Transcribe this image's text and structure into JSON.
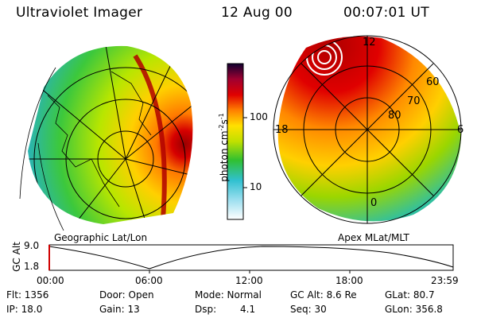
{
  "header": {
    "instrument": "Ultraviolet Imager",
    "date": "12 Aug 00",
    "time": "00:07:01 UT"
  },
  "colors": {
    "auroral_high": "#c00000",
    "auroral_mid": "#ff8c00",
    "auroral_low": "#2ecc2e",
    "background": "#ffffff",
    "grid": "#000000"
  },
  "left_panel": {
    "label": "Geographic Lat/Lon"
  },
  "right_panel": {
    "label": "Apex MLat/MLT",
    "mlt_labels": [
      "12",
      "18",
      "6",
      "0"
    ],
    "lat_labels": [
      "60",
      "70",
      "80"
    ]
  },
  "colorbar": {
    "unit": "photon cm",
    "ticks": [
      "100",
      "10"
    ]
  },
  "timeline": {
    "ylabel": "GC Alt",
    "ymax": "9.0",
    "ymin": "1.8",
    "ticks": [
      "00:00",
      "06:00",
      "12:00",
      "18:00",
      "23:59"
    ]
  },
  "footer": {
    "flt": "Flt: 1356",
    "ip": "IP: 18.0",
    "door": "Door: Open",
    "gain": "Gain: 13",
    "mode": "Mode: Normal",
    "dsp_label": "Dsp:",
    "dsp_value": "4.1",
    "gcalt": "GC Alt: 8.6 Re",
    "seq": "Seq: 30",
    "glat": "GLat:  80.7",
    "glon": "GLon: 356.8"
  }
}
